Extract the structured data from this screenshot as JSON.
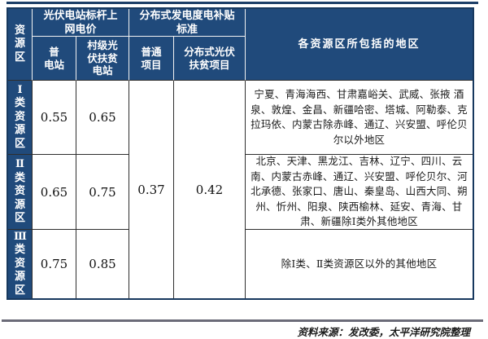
{
  "colors": {
    "header_navy": "#204a7b",
    "border_dark": "#2e2e2e",
    "top_rule_navy": "#1d3f68",
    "footer_rule_gray": "#6b6b78"
  },
  "table": {
    "corner_header": "资源区",
    "group_headers": [
      "光伏电站标杆上\n网电价",
      "分布式发电度电补贴\n标准"
    ],
    "sub_headers": [
      "普\n电站",
      "村级光\n伏扶贫\n电站",
      "普通\n项目",
      "分布式光伏\n扶贫项目"
    ],
    "region_header": "各资源区所包括的地区",
    "rows": [
      {
        "zone": "Ⅰ类资源区",
        "benchmark_price": "0.55",
        "village_poverty_price": "0.65",
        "regions": "宁夏、青海海西、甘肃嘉峪关、武威、张掖 酒泉、敦煌、金昌、新疆哈密、塔城、阿勒泰、克拉玛依、内蒙古除赤峰、通辽、兴安盟、呼伦贝尔以外地区"
      },
      {
        "zone": "Ⅱ类资源区",
        "benchmark_price": "0.65",
        "village_poverty_price": "0.75",
        "regions": "北京、天津、黑龙江、吉林、辽宁、四川、云南、内蒙古赤峰、通辽、兴安盟、呼伦贝尔、河北承德、张家口、唐山、秦皇岛、山西大同、朔州、忻州、阳泉、陕西榆林、延安、青海、甘肃、新疆除Ⅰ类外其他地区"
      },
      {
        "zone": "Ⅲ类资源区",
        "benchmark_price": "0.75",
        "village_poverty_price": "0.85",
        "regions": "除Ⅰ类、Ⅱ类资源区以外的其他地区"
      }
    ],
    "merged_values": {
      "ordinary_project": "0.37",
      "distributed_poverty_project": "0.42"
    }
  },
  "footer": {
    "source": "资料来源：发改委，太平洋研究院整理"
  }
}
